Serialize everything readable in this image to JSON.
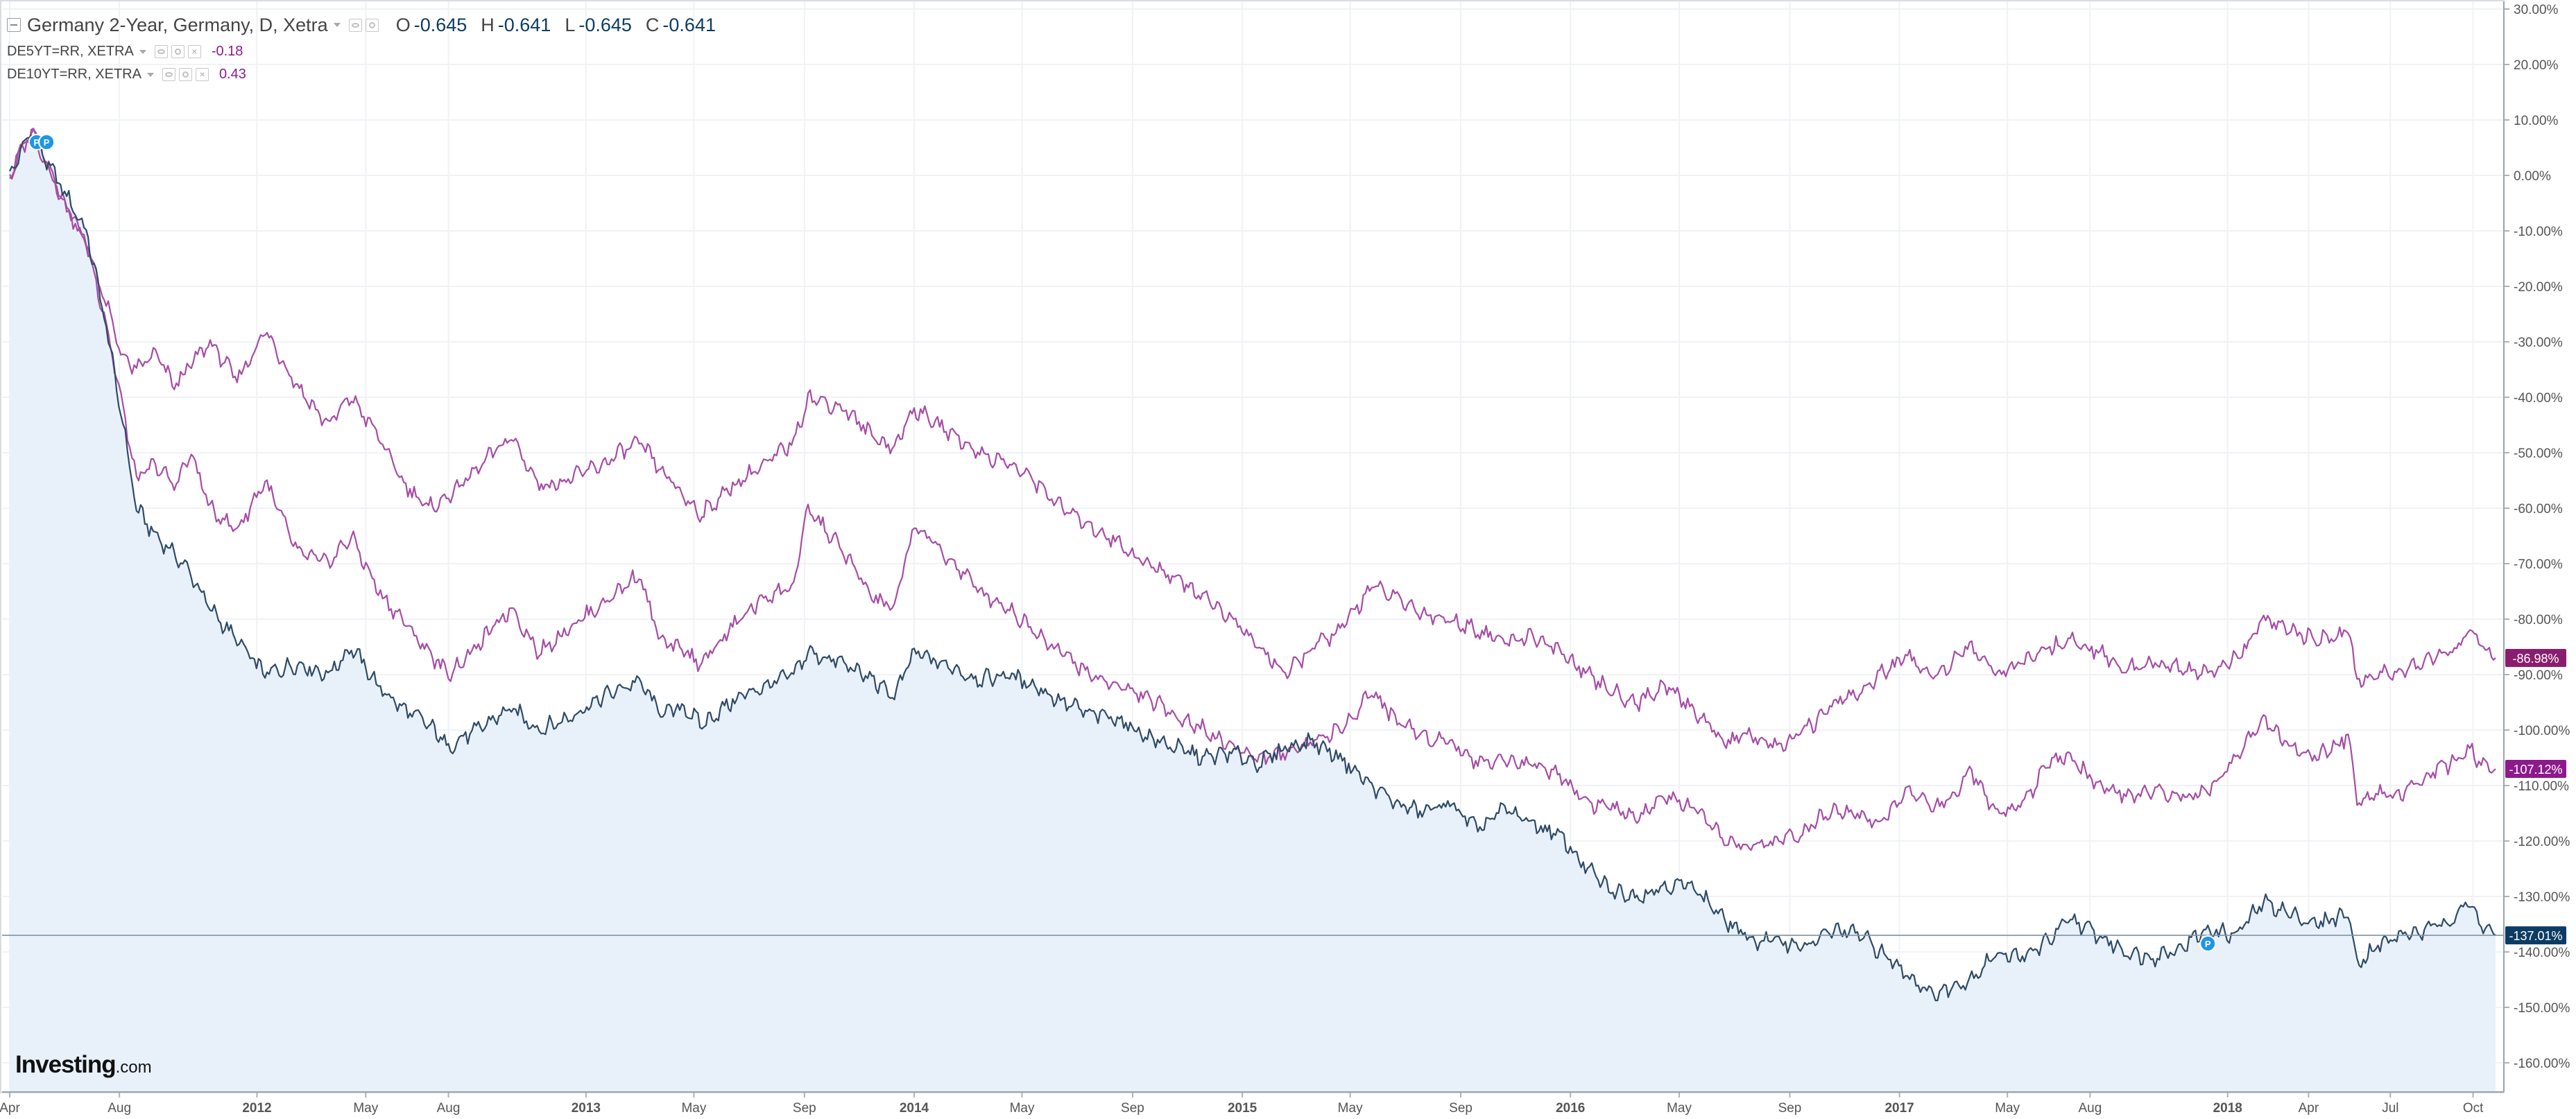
{
  "header": {
    "main_symbol": "Germany 2-Year, Germany, D, Xetra",
    "ohlc": [
      {
        "k": "O",
        "v": "-0.645"
      },
      {
        "k": "H",
        "v": "-0.641"
      },
      {
        "k": "L",
        "v": "-0.645"
      },
      {
        "k": "C",
        "v": "-0.641"
      }
    ],
    "comparisons": [
      {
        "name": "DE5YT=RR, XETRA",
        "value": "-0.18"
      },
      {
        "name": "DE10YT=RR, XETRA",
        "value": "0.43"
      }
    ]
  },
  "logo": {
    "brand": "Investing",
    "suffix": ".com"
  },
  "colors": {
    "main_line": "#2e4a66",
    "main_fill": "#e8f1fa",
    "compare_line": "#a64ca6",
    "price_line": "#7f92a6",
    "tag_5y": "#8a1e6e",
    "tag_10y": "#8c1a8c",
    "tag_main": "#0c3c64",
    "marker": "#1e96e8"
  },
  "markers": [
    "P",
    "P",
    "P"
  ],
  "chart_data": {
    "type": "line",
    "title": "",
    "xlabel": "",
    "ylabel": "",
    "y_scale": "percent_change",
    "ylim": [
      -163,
      31
    ],
    "y_ticks": [
      30,
      20,
      10,
      0,
      -10,
      -20,
      -30,
      -40,
      -50,
      -60,
      -70,
      -80,
      -90,
      -100,
      -110,
      -120,
      -130,
      -140,
      -150,
      -160
    ],
    "y_tick_labels": [
      "30.00%",
      "20.00%",
      "10.00%",
      "0.00%",
      "-10.00%",
      "-20.00%",
      "-30.00%",
      "-40.00%",
      "-50.00%",
      "-60.00%",
      "-70.00%",
      "-80.00%",
      "-90.00%",
      "-100.00%",
      "-110.00%",
      "-120.00%",
      "-130.00%",
      "-140.00%",
      "-150.00%",
      "-160.00%"
    ],
    "xlim": [
      "2011-04-01",
      "2018-10-26"
    ],
    "x_ticks": [
      {
        "date": "2011-04-01",
        "label": "Apr",
        "major": false
      },
      {
        "date": "2011-08-01",
        "label": "Aug",
        "major": false
      },
      {
        "date": "2012-01-01",
        "label": "2012",
        "major": true
      },
      {
        "date": "2012-05-01",
        "label": "May",
        "major": false
      },
      {
        "date": "2012-08-01",
        "label": "Aug",
        "major": false
      },
      {
        "date": "2013-01-01",
        "label": "2013",
        "major": true
      },
      {
        "date": "2013-05-01",
        "label": "May",
        "major": false
      },
      {
        "date": "2013-09-01",
        "label": "Sep",
        "major": false
      },
      {
        "date": "2014-01-01",
        "label": "2014",
        "major": true
      },
      {
        "date": "2014-05-01",
        "label": "May",
        "major": false
      },
      {
        "date": "2014-09-01",
        "label": "Sep",
        "major": false
      },
      {
        "date": "2015-01-01",
        "label": "2015",
        "major": true
      },
      {
        "date": "2015-05-01",
        "label": "May",
        "major": false
      },
      {
        "date": "2015-09-01",
        "label": "Sep",
        "major": false
      },
      {
        "date": "2016-01-01",
        "label": "2016",
        "major": true
      },
      {
        "date": "2016-05-01",
        "label": "May",
        "major": false
      },
      {
        "date": "2016-09-01",
        "label": "Sep",
        "major": false
      },
      {
        "date": "2017-01-01",
        "label": "2017",
        "major": true
      },
      {
        "date": "2017-05-01",
        "label": "May",
        "major": false
      },
      {
        "date": "2017-08-01",
        "label": "Aug",
        "major": false
      },
      {
        "date": "2018-01-01",
        "label": "2018",
        "major": true
      },
      {
        "date": "2018-04-01",
        "label": "Apr",
        "major": false
      },
      {
        "date": "2018-07-01",
        "label": "Jul",
        "major": false
      },
      {
        "date": "2018-10-01",
        "label": "Oct",
        "major": false
      }
    ],
    "grid": true,
    "legend": "top-left",
    "current_price_line": -137.01,
    "last_value_tags": [
      {
        "series": "DE5YT=RR, XETRA",
        "label": "-86.98%"
      },
      {
        "series": "DE10YT=RR, XETRA",
        "label": "-107.12%"
      },
      {
        "series": "Germany 2-Year, Germany, D, Xetra",
        "label": "-137.01%"
      }
    ],
    "series": [
      {
        "name": "Germany 2-Year, Germany, D, Xetra",
        "style": "area",
        "dates": [
          "2011-04-01",
          "2011-04-25",
          "2011-05-10",
          "2011-06-01",
          "2011-06-25",
          "2011-07-15",
          "2011-08-05",
          "2011-08-20",
          "2011-09-10",
          "2011-10-01",
          "2011-10-20",
          "2011-11-10",
          "2011-12-10",
          "2012-01-10",
          "2012-02-15",
          "2012-03-20",
          "2012-04-15",
          "2012-05-15",
          "2012-06-10",
          "2012-07-10",
          "2012-08-01",
          "2012-09-01",
          "2012-10-10",
          "2012-11-10",
          "2012-12-10",
          "2013-01-20",
          "2013-03-01",
          "2013-03-25",
          "2013-04-20",
          "2013-05-10",
          "2013-06-20",
          "2013-07-20",
          "2013-08-20",
          "2013-09-05",
          "2013-10-15",
          "2013-11-15",
          "2013-12-10",
          "2014-01-01",
          "2014-02-15",
          "2014-03-15",
          "2014-04-15",
          "2014-05-15",
          "2014-06-15",
          "2014-07-15",
          "2014-08-15",
          "2014-09-15",
          "2014-10-15",
          "2014-11-20",
          "2014-12-20",
          "2015-01-20",
          "2015-02-20",
          "2015-03-20",
          "2015-04-20",
          "2015-05-25",
          "2015-06-20",
          "2015-07-20",
          "2015-08-20",
          "2015-09-20",
          "2015-10-20",
          "2015-11-20",
          "2015-12-20",
          "2016-01-20",
          "2016-02-15",
          "2016-03-15",
          "2016-04-15",
          "2016-05-15",
          "2016-06-20",
          "2016-07-20",
          "2016-08-20",
          "2016-09-20",
          "2016-10-20",
          "2016-11-20",
          "2016-12-10",
          "2017-01-10",
          "2017-02-10",
          "2017-03-01",
          "2017-03-20",
          "2017-04-20",
          "2017-05-20",
          "2017-06-15",
          "2017-07-10",
          "2017-08-10",
          "2017-09-10",
          "2017-10-10",
          "2017-11-10",
          "2017-12-10",
          "2018-01-10",
          "2018-02-10",
          "2018-03-10",
          "2018-04-10",
          "2018-05-15",
          "2018-05-25",
          "2018-06-15",
          "2018-07-15",
          "2018-08-15",
          "2018-09-15",
          "2018-09-25",
          "2018-10-10",
          "2018-10-26"
        ],
        "values": [
          0,
          8,
          3,
          -3,
          -10,
          -25,
          -45,
          -60,
          -65,
          -68,
          -72,
          -78,
          -84,
          -90,
          -88,
          -90,
          -85,
          -92,
          -96,
          -99,
          -103,
          -100,
          -96,
          -100,
          -98,
          -94,
          -91,
          -97,
          -96,
          -99,
          -94,
          -92,
          -90,
          -86,
          -88,
          -91,
          -94,
          -86,
          -89,
          -91,
          -90,
          -92,
          -95,
          -97,
          -98,
          -101,
          -103,
          -105,
          -104,
          -106,
          -103,
          -102,
          -105,
          -110,
          -113,
          -115,
          -113,
          -118,
          -114,
          -117,
          -119,
          -125,
          -129,
          -130,
          -128,
          -128,
          -134,
          -138,
          -138,
          -139,
          -136,
          -137,
          -140,
          -144,
          -148,
          -146,
          -145,
          -140,
          -141,
          -138,
          -134,
          -137,
          -140,
          -141,
          -139,
          -136,
          -137,
          -131,
          -133,
          -135,
          -133,
          -142,
          -139,
          -137,
          -136,
          -133,
          -131,
          -135,
          -137
        ]
      },
      {
        "name": "DE5YT=RR, XETRA",
        "style": "line",
        "dates": [
          "2011-04-01",
          "2011-04-25",
          "2011-05-10",
          "2011-06-01",
          "2011-06-25",
          "2011-07-15",
          "2011-08-05",
          "2011-08-20",
          "2011-09-10",
          "2011-10-01",
          "2011-10-20",
          "2011-11-10",
          "2011-12-10",
          "2012-01-10",
          "2012-02-15",
          "2012-03-20",
          "2012-04-15",
          "2012-05-15",
          "2012-06-10",
          "2012-07-10",
          "2012-08-01",
          "2012-09-01",
          "2012-10-10",
          "2012-11-10",
          "2012-12-10",
          "2013-01-20",
          "2013-03-01",
          "2013-03-25",
          "2013-04-20",
          "2013-05-10",
          "2013-06-20",
          "2013-07-20",
          "2013-08-20",
          "2013-09-05",
          "2013-10-15",
          "2013-11-15",
          "2013-12-10",
          "2014-01-01",
          "2014-02-15",
          "2014-03-15",
          "2014-04-15",
          "2014-05-15",
          "2014-06-15",
          "2014-07-15",
          "2014-08-15",
          "2014-09-15",
          "2014-10-15",
          "2014-11-20",
          "2014-12-20",
          "2015-01-20",
          "2015-02-20",
          "2015-03-20",
          "2015-04-20",
          "2015-05-25",
          "2015-06-20",
          "2015-07-20",
          "2015-08-20",
          "2015-09-20",
          "2015-10-20",
          "2015-11-20",
          "2015-12-20",
          "2016-01-20",
          "2016-02-15",
          "2016-03-15",
          "2016-04-15",
          "2016-05-15",
          "2016-06-20",
          "2016-07-20",
          "2016-08-20",
          "2016-09-20",
          "2016-10-20",
          "2016-11-20",
          "2016-12-10",
          "2017-01-10",
          "2017-02-10",
          "2017-03-01",
          "2017-03-20",
          "2017-04-20",
          "2017-05-20",
          "2017-06-15",
          "2017-07-10",
          "2017-08-10",
          "2017-09-10",
          "2017-10-10",
          "2017-11-10",
          "2017-12-10",
          "2018-01-10",
          "2018-02-10",
          "2018-03-10",
          "2018-04-10",
          "2018-05-15",
          "2018-05-25",
          "2018-06-15",
          "2018-07-15",
          "2018-08-15",
          "2018-09-15",
          "2018-09-25",
          "2018-10-10",
          "2018-10-26"
        ],
        "values": [
          0,
          8,
          3,
          -5,
          -12,
          -22,
          -33,
          -35,
          -32,
          -38,
          -34,
          -30,
          -37,
          -28,
          -38,
          -45,
          -40,
          -47,
          -55,
          -60,
          -58,
          -53,
          -47,
          -56,
          -55,
          -52,
          -48,
          -53,
          -58,
          -61,
          -55,
          -52,
          -48,
          -40,
          -42,
          -47,
          -49,
          -42,
          -47,
          -50,
          -52,
          -55,
          -60,
          -63,
          -66,
          -70,
          -72,
          -76,
          -80,
          -85,
          -90,
          -85,
          -82,
          -74,
          -76,
          -79,
          -80,
          -82,
          -84,
          -83,
          -86,
          -90,
          -93,
          -95,
          -92,
          -96,
          -102,
          -101,
          -103,
          -100,
          -95,
          -93,
          -90,
          -87,
          -90,
          -88,
          -85,
          -90,
          -88,
          -85,
          -84,
          -86,
          -89,
          -88,
          -89,
          -90,
          -87,
          -80,
          -82,
          -84,
          -82,
          -91,
          -90,
          -89,
          -87,
          -85,
          -82,
          -84,
          -87
        ]
      },
      {
        "name": "DE10YT=RR, XETRA",
        "style": "line",
        "dates": [
          "2011-04-01",
          "2011-04-25",
          "2011-05-10",
          "2011-06-01",
          "2011-06-25",
          "2011-07-15",
          "2011-08-05",
          "2011-08-20",
          "2011-09-10",
          "2011-10-01",
          "2011-10-20",
          "2011-11-10",
          "2011-12-10",
          "2012-01-10",
          "2012-02-15",
          "2012-03-20",
          "2012-04-15",
          "2012-05-15",
          "2012-06-10",
          "2012-07-10",
          "2012-08-01",
          "2012-09-01",
          "2012-10-10",
          "2012-11-10",
          "2012-12-10",
          "2013-01-20",
          "2013-03-01",
          "2013-03-25",
          "2013-04-20",
          "2013-05-10",
          "2013-06-20",
          "2013-07-20",
          "2013-08-20",
          "2013-09-05",
          "2013-10-15",
          "2013-11-15",
          "2013-12-10",
          "2014-01-01",
          "2014-02-15",
          "2014-03-15",
          "2014-04-15",
          "2014-05-15",
          "2014-06-15",
          "2014-07-15",
          "2014-08-15",
          "2014-09-15",
          "2014-10-15",
          "2014-11-20",
          "2014-12-20",
          "2015-01-20",
          "2015-02-20",
          "2015-03-20",
          "2015-04-20",
          "2015-05-25",
          "2015-06-20",
          "2015-07-20",
          "2015-08-20",
          "2015-09-20",
          "2015-10-20",
          "2015-11-20",
          "2015-12-20",
          "2016-01-20",
          "2016-02-15",
          "2016-03-15",
          "2016-04-15",
          "2016-05-15",
          "2016-06-20",
          "2016-07-20",
          "2016-08-20",
          "2016-09-20",
          "2016-10-20",
          "2016-11-20",
          "2016-12-10",
          "2017-01-10",
          "2017-02-10",
          "2017-03-01",
          "2017-03-20",
          "2017-04-20",
          "2017-05-20",
          "2017-06-15",
          "2017-07-10",
          "2017-08-10",
          "2017-09-10",
          "2017-10-10",
          "2017-11-10",
          "2017-12-10",
          "2018-01-10",
          "2018-02-10",
          "2018-03-10",
          "2018-04-10",
          "2018-05-15",
          "2018-05-25",
          "2018-06-15",
          "2018-07-15",
          "2018-08-15",
          "2018-09-15",
          "2018-09-25",
          "2018-10-10",
          "2018-10-26"
        ],
        "values": [
          0,
          8,
          3,
          -5,
          -12,
          -25,
          -42,
          -55,
          -52,
          -56,
          -50,
          -60,
          -64,
          -55,
          -68,
          -70,
          -65,
          -75,
          -80,
          -86,
          -90,
          -85,
          -78,
          -86,
          -82,
          -77,
          -72,
          -84,
          -86,
          -88,
          -80,
          -76,
          -74,
          -60,
          -68,
          -76,
          -78,
          -63,
          -70,
          -75,
          -78,
          -82,
          -86,
          -90,
          -92,
          -94,
          -97,
          -100,
          -103,
          -105,
          -104,
          -102,
          -100,
          -93,
          -98,
          -101,
          -102,
          -106,
          -105,
          -106,
          -108,
          -113,
          -114,
          -116,
          -112,
          -114,
          -120,
          -121,
          -120,
          -118,
          -114,
          -115,
          -117,
          -111,
          -114,
          -112,
          -107,
          -115,
          -113,
          -106,
          -105,
          -110,
          -112,
          -111,
          -112,
          -111,
          -105,
          -98,
          -103,
          -105,
          -101,
          -113,
          -111,
          -112,
          -108,
          -105,
          -103,
          -106,
          -107
        ]
      }
    ]
  }
}
